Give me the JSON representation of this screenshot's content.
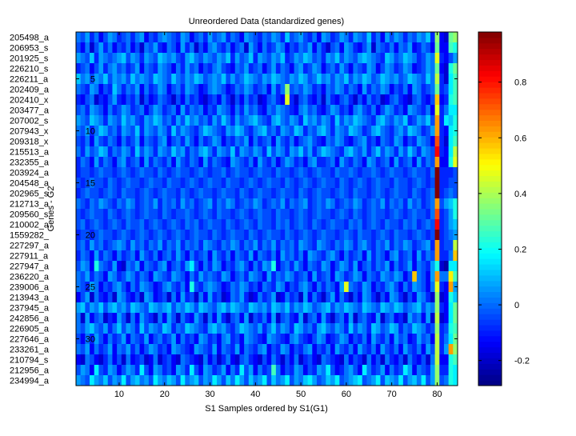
{
  "chart_data": {
    "type": "heatmap",
    "title": "Unreordered Data (standardized genes)",
    "xlabel": "S1 Samples ordered by S1(G1)",
    "ylabel": "Genes - G2",
    "colormap": "jet",
    "xlim": [
      0.5,
      84.5
    ],
    "ylim": [
      0.5,
      34.5
    ],
    "x_ticks": [
      10,
      20,
      30,
      40,
      50,
      60,
      70,
      80
    ],
    "y_ticks": [
      5,
      10,
      15,
      20,
      25,
      30
    ],
    "row_labels": [
      "205498_a",
      "206953_s",
      "201925_s",
      "226210_s",
      "226211_a",
      "202409_a",
      "202410_x",
      "203477_a",
      "207002_s",
      "207943_x",
      "209318_x",
      "215513_a",
      "232355_a",
      "203924_a",
      "204548_a",
      "202965_s",
      "212713_a",
      "209560_s",
      "210002_a",
      "1559282_",
      "227297_a",
      "227911_a",
      "227947_a",
      "236220_a",
      "239006_a",
      "213943_a",
      "237945_a",
      "242856_a",
      "226905_a",
      "227646_a",
      "233261_a",
      "210794_s",
      "212956_a",
      "234994_a"
    ],
    "colorbar": {
      "min": -0.29,
      "max": 0.98,
      "ticks": [
        -0.2,
        0,
        0.2,
        0.4,
        0.6,
        0.8
      ],
      "tick_labels": [
        "-0.2",
        "0",
        "0.2",
        "0.4",
        "0.6",
        "0.8"
      ]
    },
    "value_encoding": {
      "alphabet": "abcdefghijklmnopqrstuvwxyz",
      "min": -0.29,
      "max": 0.98,
      "note": "each letter is one cell value, a = min, z = max, linear"
    },
    "rows": [
      "gfhegdfhge fgeghdfegh gfehgdfgeh fghegfdhgf egfhgeifgh fegdhgefhg ehgfiegdhf hgegfhgie n dcmn",
      "fdgcfhegdf egdfcgfhed gfdhegcfdg hfegdfgchf dgefhgdfeg fhdgecfgdh gedfhcgfeg dgfhdegfd m ddlk",
      "hgfiehgfgh ifhgehgfih ghfehigfhg fhgiehfgie hgfhgiefhg ihfgehgifh gfhihgfeih fgihgefhg p edfh",
      "efgdfheghf gefhdgfehg fdgehfgdfe ghfedgfhef gdfhegfdgh efhgdfgehf dgfehgdfhg efhgdefhg m dckm",
      "ighfhgifhg hfighgfihg figfhgihfg hgifhfgihg fhgihgfhgi hfgighfhgi fhgihfgihg hfgihgfig o ecjl",
      "gfehgdfeig egfhdgefhg dfgehgfdeg hgfdegfhge fgdhegnfgf hgefdgfhge gfdhegfhgd fegdhgefg m efjl",
      "edfgcedfhe dfegcfdegf ecfdgefdce fdgecfdgef cdfgedpecf gedfcgedfg ecfdgefcdf gedcfgedf r dekl",
      "fgehgfdgef hgefgdfhge fgdhegfgdf ehgfdgehfg edgfhgfedg hfgedfhgef dghfegdfhg efdhgfegd p egjj",
      "hgfihgehgf ighfehgihf gehfighfge hfigehfghi gfehigfhge ighfhgeifh gihgfehigf hgiefhgif s ejik",
      "gfhegihfge hgfiehgfhg eifhgfegih gfehgihfeg hifgehgfih egfhigehgf ihgefhigfe ghfihgefh s edjk",
      "fegdhfegfd gefhdgfegh dfgehfdgef hgdfegfhdg efgdhfegdf ghfedgfhge dfghefdgfe hgdfehgfd u ecjl",
      "gehfgihegf hgeifhgehg fighegfhig ehgfiehgfh geifhgehgi fhegihgfeh igfhegifhg ehfigehgf w edjo",
      "egfdhegfdg hefgdhegfe gdhfegfdhe gfedhgfegd hfegdfhgef dgheefgdhf egfdhgefgd hefgdhegf s ddkp",
      "effefgffef gfefgffegf efgffefgfe ffgefgffef gffegffefg fefgffegff gfeffgfefg ffefgffeg z eeef",
      "fefgffegfe fgffefgffe gffefgfefg ffegffefgf efgffegfef gfefgffegf efgfefgffe gffefgfef z eeff",
      "efgffefgfe gffefgfefg ffegfefgff efgffegfef gffefgffeg fefgffefgf egffefgfef gffegfefg z efgf",
      "gfegfhgfeg fhgefgfheg fgehfgefgh egfhgefgfh gefgfhegfg hefgfhgefg fhgefgfheg fgehfgefg s fhik",
      "fefgffegfe fgfefgffeg feffgfefgf egffefgfef gffegffefg fefgffefgf egfefgffef gfefgffeg u efhk",
      "fgefgfefgf egffgefgfe fgfegfgefg ffegfefgfe gffegfgefg fegfefgffe gfgefgfegf fegfgefgf w efhi",
      "effefgffef gfefgfefgf efgfefgffe gfefgffegf efgffegfef gfefgffefg fegffefgfe gffefgfef z efgh",
      "fgehfgefgh gehfgegfhe gfhegfgehg fegfhgegfh egfhegfgeh gfehgfegfh geghfegfhe gfhgefghe s effo",
      "egfdhegfdg efgdhfegdf gehfdgefgd hfegdgfehd gfegdhfgeg dhgfeghfdg efgdhegfdg hefgdhegf s eegr",
      "fhgdkgfehd cgfhdgfegh dfgehjfdge hgdfeghfdg ehgkdfgehf dgfehgdfhg ehdfgegfhd gefhdgfeh k cbjj",
      "gfhegfdhge fhgegfdhgf ehgfdgehfg fehgdfgehg fdhegfhgef gdhefgdhge fhgdgfehgf hgdfrgfdh s ggql",
      "gfehgdfegh fdgehgfdeg hfegdkfegh gfdegfhgef dgfehgdfeg hfdgegfdhp gfehgdfegh fdgehgfdg p edsh",
      "dfhcgedfch gedfchgdef cgdhefcgdh efcdgfhecd gefhcdgefc hdgecfhdge cfdhgecfdh gecfdhgec n cdki",
      "hifhgifhig hfihgfihgh ifhgihfihg fhigihgfih ghfihgifhg ihfghifhgi hgfihgfihg ihfghifhg n edjm",
      "gchdfgcedh fcgdhfecgd hfcgedhfcg dhecfgdhcf egdhcfgedh cfgdhecfgd hcfgedhcfg dechfgdhc o cdjm",
      "gfhigfhegi fhgeifhgfi hegfihgfeh ighfegihgf hegifhgeih fgehigfhge ifhgeihfgi hegfihgef n efkl",
      "fdgehfdgef hdgfehdfge fhdgefdhge fdghefdhgf edhgfedghf edfhgdefhg dfegdhfegd hfgdehfgd o egjm",
      "gfhdgefhdg fhegdfhgef dhgfedhgfe hdgfehdgfe ghdfehgdfe ghdfegdhfe gdhfegdhfe gdhfegdhf o ehsn",
      "dcgfdcegdf cgdefcdgce fdcgfedcgd fcegdcfged cfdgecfdgc efdcgfedcg dfecgdfcge dfcgedfcg o ddkl",
      "fhgdjfehgd fhgejfdhge fdhgejfdhg efhdgejfhd geflgdfehg dfehgjfdeg hfdjgefhdg efjhdgfeh n eekj",
      "hgfjhgifhg jfhighfjhg ihfjghifhg jhfigjhfig hjfighjfhg ijhfgihjfg hijfghjfih gjfhigjfh n fgkj"
    ]
  }
}
